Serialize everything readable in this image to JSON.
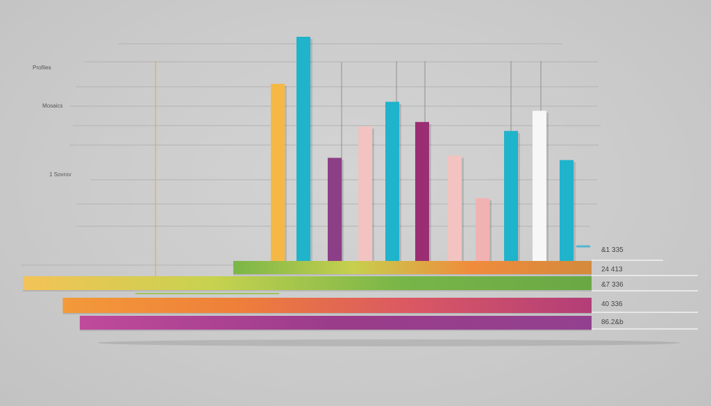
{
  "chart_data": {
    "type": "bar",
    "title": "",
    "y_tick_labels": [
      "Profiles",
      "Mosaics",
      "1 Sovrov"
    ],
    "vertical_bars": {
      "ylim": [
        0,
        100
      ],
      "values": [
        79,
        100,
        46,
        60,
        71,
        62,
        47,
        28,
        58,
        67,
        45
      ],
      "colors": [
        "#f6b845",
        "#1fb3cc",
        "#8c3f86",
        "#f2c3c1",
        "#1fb3cc",
        "#9b2e72",
        "#f2c3c1",
        "#f0b3b1",
        "#1fb3cc",
        "#f7f7f7",
        "#1fb3cc"
      ]
    },
    "horizontal_bars": {
      "xlim": [
        0,
        100
      ],
      "items": [
        {
          "label": "&1 335",
          "start": 37,
          "end": 100,
          "colors": [
            "#7ab648",
            "#c7cf4e",
            "#f08b3c",
            "#d48a3c"
          ]
        },
        {
          "label": "24 413",
          "start": 0,
          "end": 100,
          "colors": [
            "#f3c357",
            "#c7d24f",
            "#78b548",
            "#6aa845"
          ]
        },
        {
          "label": "&7 336",
          "start": 0,
          "end": 0,
          "colors": []
        },
        {
          "label": "40 336",
          "start": 7,
          "end": 100,
          "colors": [
            "#f39a3a",
            "#ee7f3a",
            "#d95764",
            "#b23e78"
          ]
        },
        {
          "label": "86.2&b",
          "start": 10,
          "end": 100,
          "colors": [
            "#c04a9b",
            "#9a3c8a",
            "#93418f"
          ]
        }
      ]
    }
  }
}
